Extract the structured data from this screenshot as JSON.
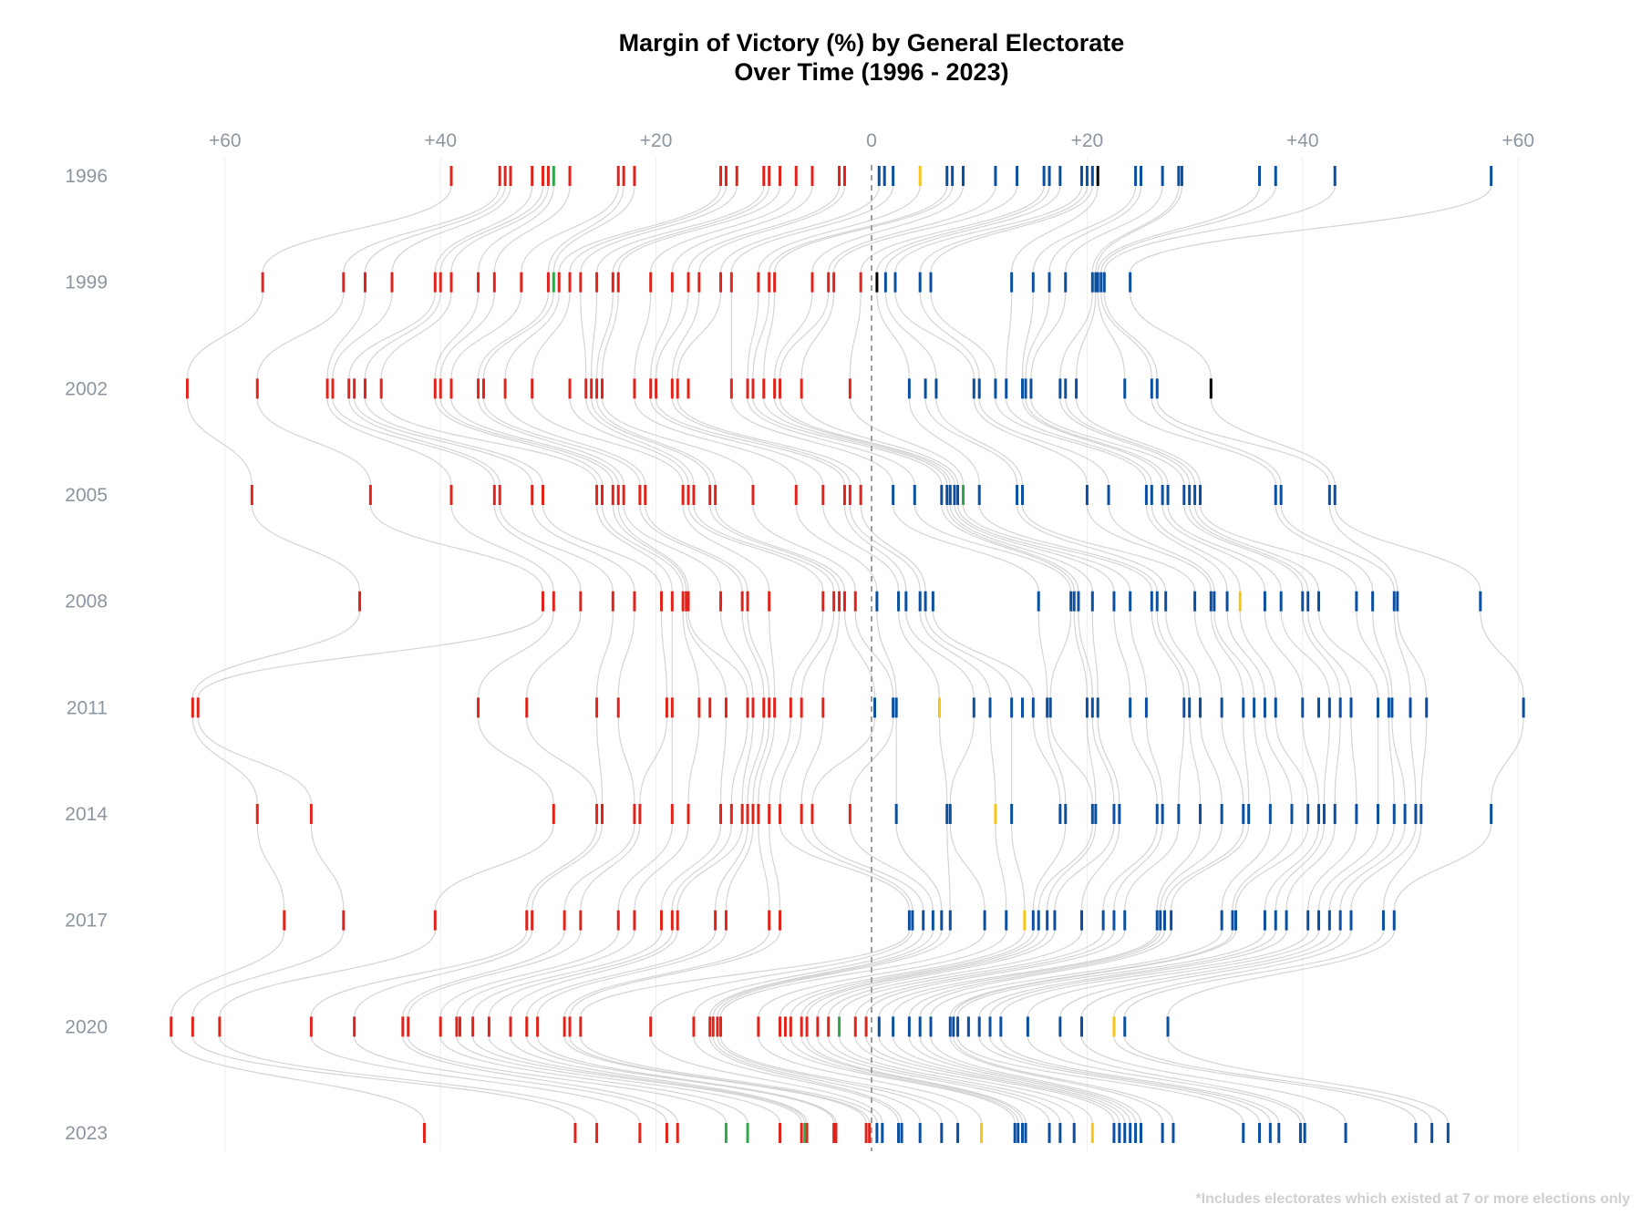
{
  "chart_data": {
    "type": "scatter",
    "title": "Margin of Victory (%) by General Electorate",
    "subtitle": "Over Time (1996 - 2023)",
    "footnote": "*Includes electorates which existed at 7 or more elections only",
    "x_axis": {
      "range": [
        -66,
        66
      ],
      "ticks": [
        -60,
        -40,
        -20,
        0,
        20,
        40,
        60
      ],
      "tick_labels": [
        "+60",
        "+40",
        "+20",
        "0",
        "+20",
        "+40",
        "+60"
      ],
      "position": "top",
      "grid": true,
      "zero_line": "dashed"
    },
    "y_categories": [
      "1996",
      "1999",
      "2002",
      "2005",
      "2008",
      "2011",
      "2014",
      "2017",
      "2020",
      "2023"
    ],
    "colors": {
      "labour": "#e0241b",
      "national": "#0b4fa0",
      "green": "#2ea84a",
      "nzfirst": "#000000",
      "act": "#f5c518",
      "connector": "#cccccc",
      "grid": "#eeeeee",
      "zero_line": "#9aa0a8"
    },
    "series": [
      {
        "year": "1996",
        "labour": [
          -39,
          -34.5,
          -34,
          -33.5,
          -31.5,
          -30.5,
          -30,
          -28,
          -23.5,
          -23,
          -22,
          -14,
          -13.5,
          -12.5,
          -10,
          -9.5,
          -8.5,
          -7,
          -5.5,
          -3,
          -2.5
        ],
        "national": [
          0.7,
          1.2,
          2,
          7,
          7.5,
          8.5,
          11.5,
          13.5,
          16,
          16.5,
          17.5,
          19.5,
          20,
          20.5,
          24.5,
          25,
          27,
          28.5,
          28.8,
          36,
          37.5,
          43,
          57.5
        ],
        "green": [
          -29.5
        ],
        "nzfirst": [
          21
        ],
        "act": [
          4.5
        ]
      },
      {
        "year": "1999",
        "labour": [
          -56.5,
          -49,
          -47,
          -44.5,
          -40.5,
          -40,
          -39,
          -36.5,
          -35,
          -32.5,
          -30,
          -29,
          -28,
          -27,
          -25.5,
          -24,
          -23.5,
          -20.5,
          -18.5,
          -17,
          -16,
          -14,
          -13,
          -10.5,
          -9.5,
          -9,
          -5.5,
          -4,
          -3.5,
          -1
        ],
        "national": [
          1.3,
          2.2,
          4.5,
          5.5,
          13,
          15,
          16.5,
          18,
          20.5,
          20.8,
          21,
          21.3,
          21.6,
          24
        ],
        "green": [
          -29.5
        ],
        "nzfirst": [
          0.5
        ],
        "act": []
      },
      {
        "year": "2002",
        "labour": [
          -63.5,
          -57,
          -50.5,
          -50,
          -48.5,
          -48,
          -47,
          -45.5,
          -40.5,
          -40,
          -39,
          -36.5,
          -36,
          -34,
          -31.5,
          -28,
          -26.5,
          -26,
          -25.5,
          -25,
          -22,
          -20.5,
          -20,
          -18.5,
          -18,
          -17,
          -13,
          -11.5,
          -11,
          -10,
          -9,
          -8.5,
          -6.5,
          -2
        ],
        "national": [
          3.5,
          5,
          6,
          9.5,
          10,
          11.5,
          12.5,
          14,
          14.3,
          14.8,
          17.5,
          18,
          19,
          23.5,
          26,
          26.5
        ],
        "green": [],
        "nzfirst": [
          31.5
        ],
        "act": []
      },
      {
        "year": "2005",
        "labour": [
          -57.5,
          -46.5,
          -39,
          -35,
          -34.5,
          -31.5,
          -30.5,
          -25.5,
          -25,
          -24,
          -23.5,
          -23,
          -21.5,
          -21,
          -17.5,
          -17,
          -16.5,
          -15,
          -14.5,
          -11,
          -7,
          -4.5,
          -2.5,
          -2,
          -1
        ],
        "national": [
          2,
          4,
          6.5,
          7,
          7.3,
          7.7,
          8,
          10,
          13.5,
          14,
          20,
          22,
          25.5,
          26,
          27,
          27.5,
          29,
          29.5,
          30,
          30.5,
          37.5,
          38,
          42.5,
          43
        ],
        "green": [
          8.5
        ],
        "nzfirst": [],
        "act": []
      },
      {
        "year": "2008",
        "labour": [
          -47.5,
          -30.5,
          -29.5,
          -27,
          -24,
          -22,
          -19.5,
          -18.5,
          -17.5,
          -17.2,
          -17,
          -14,
          -12,
          -11.5,
          -9.5,
          -4.5,
          -3.5,
          -3,
          -2.5,
          -1.5
        ],
        "national": [
          0.5,
          2.5,
          3.2,
          4.5,
          5,
          5.7,
          15.5,
          18.5,
          18.8,
          19.2,
          20.5,
          22.5,
          24,
          26,
          26.5,
          27.3,
          30,
          31.5,
          31.8,
          33,
          36.5,
          38,
          40,
          40.5,
          41.5,
          45,
          46.5,
          48.5,
          48.8,
          56.5
        ],
        "green": [],
        "nzfirst": [],
        "act": [
          34.2
        ]
      },
      {
        "year": "2011",
        "labour": [
          -63,
          -62.5,
          -36.5,
          -32,
          -25.5,
          -23.5,
          -19,
          -18.5,
          -16,
          -15,
          -13.5,
          -11.5,
          -11,
          -10,
          -9.5,
          -9,
          -7.5,
          -6.5,
          -4.5
        ],
        "national": [
          0.3,
          2,
          2.3,
          9.5,
          11,
          13,
          14,
          15,
          16.3,
          16.6,
          20,
          20.5,
          21,
          24,
          25.5,
          29,
          29.5,
          30.5,
          32.5,
          34.5,
          35.5,
          36.5,
          37.5,
          40,
          41.5,
          42.5,
          43.5,
          44.5,
          47,
          48,
          48.3,
          50,
          51.5,
          60.5
        ],
        "green": [],
        "nzfirst": [],
        "act": [
          6.3
        ]
      },
      {
        "year": "2014",
        "labour": [
          -57,
          -52,
          -29.5,
          -25.5,
          -25,
          -22,
          -21.5,
          -18.5,
          -17,
          -14,
          -13,
          -12,
          -11.5,
          -11,
          -10.5,
          -9.5,
          -8.5,
          -6.5,
          -5.5,
          -2
        ],
        "national": [
          2.3,
          7,
          7.3,
          13,
          17.5,
          18,
          20.5,
          20.8,
          22.5,
          23,
          26.5,
          27,
          28.5,
          30.5,
          32.5,
          34.5,
          35,
          37,
          39,
          40.5,
          41.5,
          42,
          43,
          45,
          47,
          48.5,
          49.5,
          50.5,
          51,
          57.5
        ],
        "green": [],
        "nzfirst": [],
        "act": [
          11.5
        ]
      },
      {
        "year": "2017",
        "labour": [
          -54.5,
          -49,
          -40.5,
          -32,
          -31.5,
          -28.5,
          -27,
          -23.5,
          -22,
          -19.5,
          -18.5,
          -18,
          -14.5,
          -13.5,
          -9.5,
          -8.5
        ],
        "national": [
          3.5,
          3.8,
          4.8,
          5.7,
          6.5,
          7.3,
          10.5,
          12.5,
          15,
          15.5,
          16.3,
          17,
          19.5,
          21.5,
          22.5,
          23.5,
          26.5,
          26.8,
          27.2,
          27.8,
          32.5,
          33.5,
          33.8,
          36.5,
          37.5,
          38.5,
          40.5,
          41.5,
          42.5,
          43.5,
          44.5,
          47.5,
          48.5
        ],
        "green": [],
        "nzfirst": [],
        "act": [
          14.2
        ]
      },
      {
        "year": "2020",
        "labour": [
          -65,
          -63,
          -60.5,
          -52,
          -48,
          -43.5,
          -43,
          -40,
          -38.5,
          -38.2,
          -37,
          -35.5,
          -33.5,
          -32,
          -31,
          -28.5,
          -28,
          -27,
          -20.5,
          -16.5,
          -15,
          -14.7,
          -14.3,
          -14,
          -10.5,
          -8.5,
          -8,
          -7.5,
          -6.5,
          -6,
          -5,
          -4,
          -1.5,
          -0.5
        ],
        "national": [
          0.7,
          2,
          3.5,
          4.5,
          5.5,
          7.3,
          7.6,
          8,
          9,
          10,
          11,
          12,
          14.5,
          17.5,
          19.5,
          23.5,
          27.5
        ],
        "green": [
          -3
        ],
        "nzfirst": [],
        "act": [
          22.5
        ]
      },
      {
        "year": "2023",
        "labour": [
          -41.5,
          -27.5,
          -25.5,
          -21.5,
          -19,
          -18,
          -8.5,
          -6.5,
          -6,
          -3.5,
          -3.3,
          -0.5,
          -0.2
        ],
        "national": [
          0.5,
          1,
          2.5,
          2.8,
          4.5,
          6.5,
          8,
          13.3,
          13.6,
          14,
          14.3,
          16.5,
          17.5,
          18.8,
          22.5,
          23,
          23.5,
          24,
          24.5,
          25,
          27,
          28,
          34.5,
          36,
          37,
          37.8,
          39.8,
          40.2,
          44,
          50.5,
          52,
          53.5
        ],
        "green": [
          -13.5,
          -11.5,
          -6.2
        ],
        "nzfirst": [],
        "act": [
          10.2,
          20.5
        ]
      }
    ]
  }
}
